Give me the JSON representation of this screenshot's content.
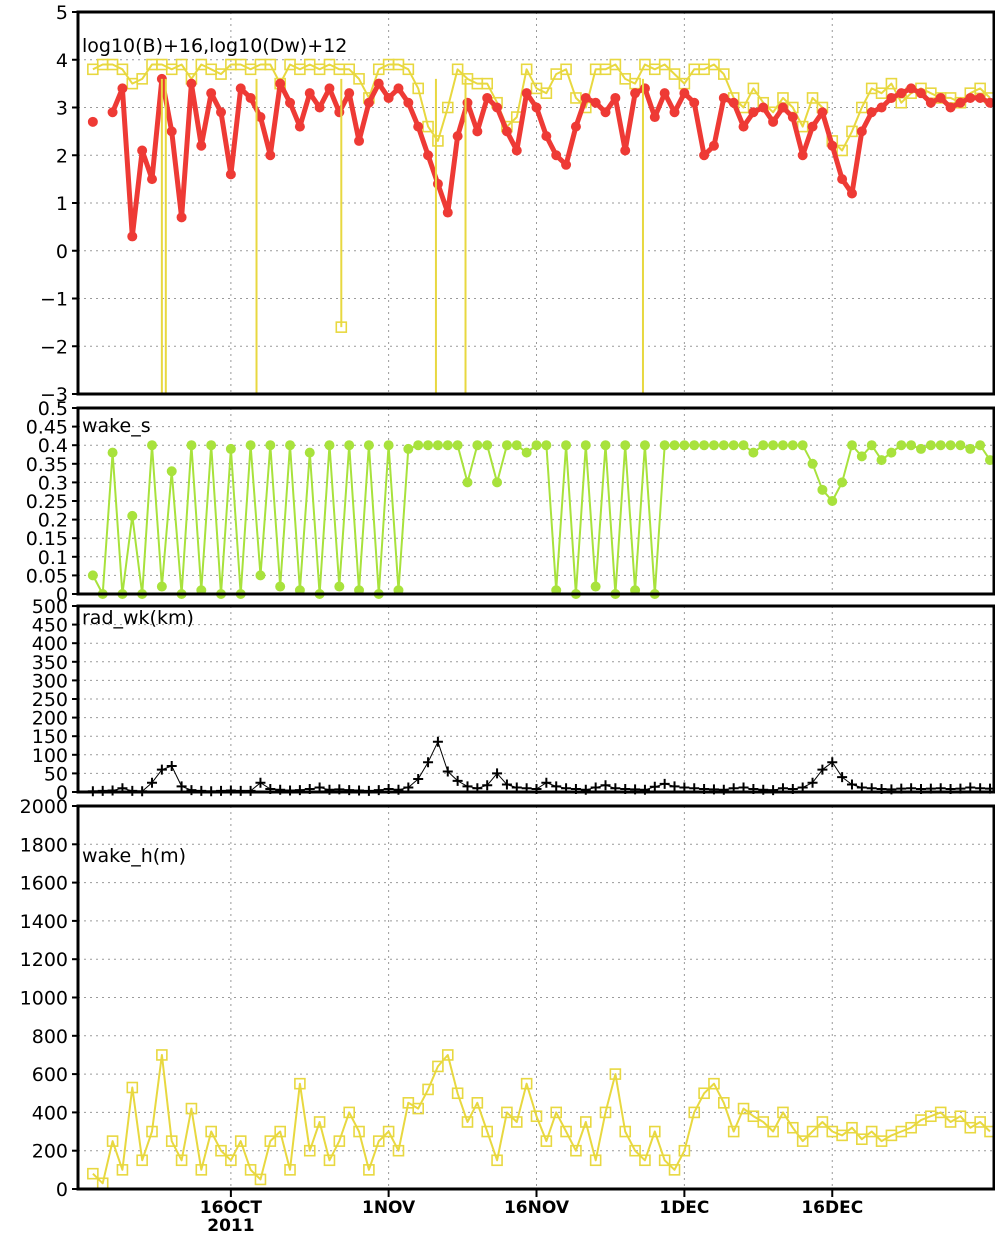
{
  "chart_data": [
    {
      "type": "line",
      "title": "log10(B)+16,log10(Dw)+12",
      "ylim": [
        -3,
        5
      ],
      "yticks": [
        "−3",
        "−2",
        "−1",
        "0",
        "1",
        "2",
        "3",
        "4",
        "5"
      ],
      "grid": true,
      "x": [
        1.0,
        2.0,
        3.0,
        4.0,
        5.0,
        6.0,
        7.0,
        8.0,
        9.0,
        10.0,
        11.0,
        12.0,
        13.0,
        14.0,
        15.0,
        16.0,
        17.0,
        18.0,
        19.0,
        20.0,
        21.0,
        22.0,
        23.0,
        24.0,
        25.0,
        26.0,
        27.0,
        28.0,
        29.0,
        30.0,
        31.0,
        32.0,
        33.0,
        34.0,
        35.0,
        36.0,
        37.0,
        38.0,
        39.0,
        40.0,
        41.0,
        42.0,
        43.0,
        44.0,
        45.0,
        46.0,
        47.0,
        48.0,
        49.0,
        50.0,
        51.0,
        52.0,
        53.0,
        54.0,
        55.0,
        56.0,
        57.0,
        58.0,
        59.0,
        60.0,
        61.0,
        62.0,
        63.0,
        64.0,
        65.0,
        66.0,
        67.0,
        68.0,
        69.0,
        70.0,
        71.0,
        72.0,
        73.0,
        74.0,
        75.0,
        76.0,
        77.0,
        78.0,
        79.0,
        80.0,
        81.0,
        82.0,
        83.0,
        84.0,
        85.0,
        86.0,
        87.0,
        88.0,
        89.0,
        90.0,
        91.0,
        92.0
      ],
      "series": [
        {
          "color": "#e8d840",
          "marker": "square",
          "values": [
            3.8,
            3.9,
            3.9,
            3.8,
            3.5,
            3.6,
            3.9,
            3.9,
            3.8,
            3.9,
            3.6,
            3.9,
            3.8,
            3.7,
            3.9,
            3.9,
            3.8,
            3.9,
            3.9,
            3.5,
            3.9,
            3.8,
            3.9,
            3.8,
            3.9,
            3.8,
            3.8,
            3.6,
            3.2,
            3.8,
            3.9,
            3.9,
            3.8,
            3.4,
            2.6,
            2.3,
            3.0,
            3.8,
            3.6,
            3.5,
            3.5,
            3.1,
            2.6,
            2.8,
            3.8,
            3.4,
            3.3,
            3.7,
            3.8,
            3.2,
            3.0,
            3.8,
            3.8,
            3.9,
            3.6,
            3.5,
            3.9,
            3.8,
            3.9,
            3.7,
            3.5,
            3.8,
            3.8,
            3.9,
            3.7,
            3.2,
            3.0,
            3.4,
            3.1,
            2.9,
            3.2,
            3.0,
            2.6,
            3.2,
            3.0,
            2.3,
            2.1,
            2.5,
            3.0,
            3.4,
            3.3,
            3.5,
            3.1,
            3.3,
            3.4,
            3.3,
            3.2,
            3.2,
            3.1,
            3.3,
            3.4,
            3.2
          ]
        },
        {
          "color": "#ee3a35",
          "marker": "circle",
          "values": [
            2.7,
            null,
            2.9,
            3.4,
            0.3,
            2.1,
            1.5,
            3.6,
            2.5,
            0.7,
            3.5,
            2.2,
            3.3,
            2.9,
            1.6,
            3.4,
            3.2,
            2.8,
            2.0,
            3.5,
            3.1,
            2.6,
            3.3,
            3.0,
            3.4,
            2.9,
            3.3,
            2.3,
            3.1,
            3.5,
            3.2,
            3.4,
            3.1,
            2.6,
            2.0,
            1.4,
            0.8,
            2.4,
            3.1,
            2.5,
            3.2,
            3.0,
            2.5,
            2.1,
            3.3,
            3.0,
            2.4,
            2.0,
            1.8,
            2.6,
            3.2,
            3.1,
            2.9,
            3.2,
            2.1,
            3.3,
            3.4,
            2.8,
            3.3,
            2.9,
            3.3,
            3.1,
            2.0,
            2.2,
            3.2,
            3.1,
            2.6,
            2.9,
            3.0,
            2.7,
            3.0,
            2.8,
            2.0,
            2.6,
            2.9,
            2.2,
            1.5,
            1.2,
            2.5,
            2.9,
            3.0,
            3.2,
            3.3,
            3.4,
            3.3,
            3.1,
            3.2,
            3.0,
            3.1,
            3.2,
            3.2,
            3.1
          ]
        }
      ],
      "drops": [
        {
          "x": 8.0,
          "value": -3
        },
        {
          "x": 8.4,
          "value": -3
        },
        {
          "x": 17.6,
          "value": -3
        },
        {
          "x": 26.2,
          "value": -1.6
        },
        {
          "x": 35.8,
          "value": -3
        },
        {
          "x": 38.8,
          "value": -3
        },
        {
          "x": 56.8,
          "value": -3
        }
      ]
    },
    {
      "type": "line",
      "title": "wake_s",
      "ylim": [
        0,
        0.5
      ],
      "yticks": [
        "0",
        "0.05",
        "0.1",
        "0.15",
        "0.2",
        "0.25",
        "0.3",
        "0.35",
        "0.4",
        "0.45",
        "0.5"
      ],
      "grid": true,
      "series": [
        {
          "color": "#a8e23c",
          "marker": "circle",
          "values": [
            0.05,
            0.0,
            0.38,
            0.0,
            0.21,
            0.0,
            0.4,
            0.02,
            0.33,
            0.0,
            0.4,
            0.01,
            0.4,
            0.0,
            0.39,
            0.0,
            0.4,
            0.05,
            0.4,
            0.02,
            0.4,
            0.01,
            0.38,
            0.0,
            0.4,
            0.02,
            0.4,
            0.01,
            0.4,
            0.0,
            0.4,
            0.01,
            0.39,
            0.4,
            0.4,
            0.4,
            0.4,
            0.4,
            0.3,
            0.4,
            0.4,
            0.3,
            0.4,
            0.4,
            0.38,
            0.4,
            0.4,
            0.01,
            0.4,
            0.0,
            0.4,
            0.02,
            0.4,
            0.0,
            0.4,
            0.01,
            0.4,
            0.0,
            0.4,
            0.4,
            0.4,
            0.4,
            0.4,
            0.4,
            0.4,
            0.4,
            0.4,
            0.38,
            0.4,
            0.4,
            0.4,
            0.4,
            0.4,
            0.35,
            0.28,
            0.25,
            0.3,
            0.4,
            0.37,
            0.4,
            0.36,
            0.38,
            0.4,
            0.4,
            0.39,
            0.4,
            0.4,
            0.4,
            0.4,
            0.39,
            0.4,
            0.36
          ]
        }
      ]
    },
    {
      "type": "line",
      "title": "rad_wk(km)",
      "ylim": [
        0,
        500
      ],
      "yticks": [
        "0",
        "50",
        "100",
        "150",
        "200",
        "250",
        "300",
        "350",
        "400",
        "450",
        "500"
      ],
      "grid": true,
      "series": [
        {
          "color": "#000000",
          "marker": "plus",
          "values": [
            2,
            3,
            4,
            10,
            3,
            2,
            25,
            60,
            70,
            15,
            5,
            3,
            2,
            3,
            4,
            3,
            3,
            25,
            8,
            6,
            4,
            5,
            8,
            12,
            6,
            7,
            5,
            4,
            3,
            5,
            8,
            6,
            12,
            35,
            80,
            135,
            55,
            30,
            15,
            10,
            18,
            50,
            20,
            12,
            10,
            8,
            25,
            15,
            10,
            8,
            6,
            12,
            18,
            10,
            8,
            7,
            6,
            14,
            22,
            15,
            12,
            10,
            8,
            7,
            6,
            10,
            12,
            8,
            6,
            5,
            10,
            8,
            12,
            25,
            60,
            80,
            40,
            20,
            12,
            10,
            8,
            7,
            9,
            10,
            8,
            9,
            10,
            8,
            9,
            12,
            10,
            9
          ]
        }
      ]
    },
    {
      "type": "line",
      "title": "wake_h(m)",
      "ylim": [
        0,
        2000
      ],
      "yticks": [
        "0",
        "200",
        "400",
        "600",
        "800",
        "1000",
        "1200",
        "1400",
        "1600",
        "1800",
        "2000"
      ],
      "grid": true,
      "series": [
        {
          "color": "#e8d840",
          "marker": "square",
          "values": [
            80,
            30,
            250,
            100,
            530,
            150,
            300,
            700,
            250,
            150,
            420,
            100,
            300,
            200,
            150,
            250,
            100,
            50,
            250,
            300,
            100,
            550,
            200,
            350,
            150,
            250,
            400,
            300,
            100,
            250,
            300,
            200,
            450,
            420,
            520,
            640,
            700,
            500,
            350,
            450,
            300,
            150,
            400,
            350,
            550,
            380,
            250,
            400,
            300,
            200,
            350,
            150,
            400,
            600,
            300,
            200,
            150,
            300,
            150,
            100,
            200,
            400,
            500,
            550,
            450,
            300,
            420,
            380,
            350,
            300,
            400,
            320,
            250,
            300,
            350,
            300,
            280,
            320,
            260,
            300,
            250,
            280,
            300,
            320,
            360,
            380,
            400,
            350,
            380,
            320,
            350,
            300
          ]
        }
      ],
      "xtick_labels": [
        "16OCT",
        "1NOV",
        "16NOV",
        "1DEC",
        "16DEC"
      ],
      "xtick_positions": [
        15,
        31,
        46,
        61,
        76
      ],
      "x_year_label": "2011",
      "xlim": [
        0,
        92
      ]
    }
  ]
}
